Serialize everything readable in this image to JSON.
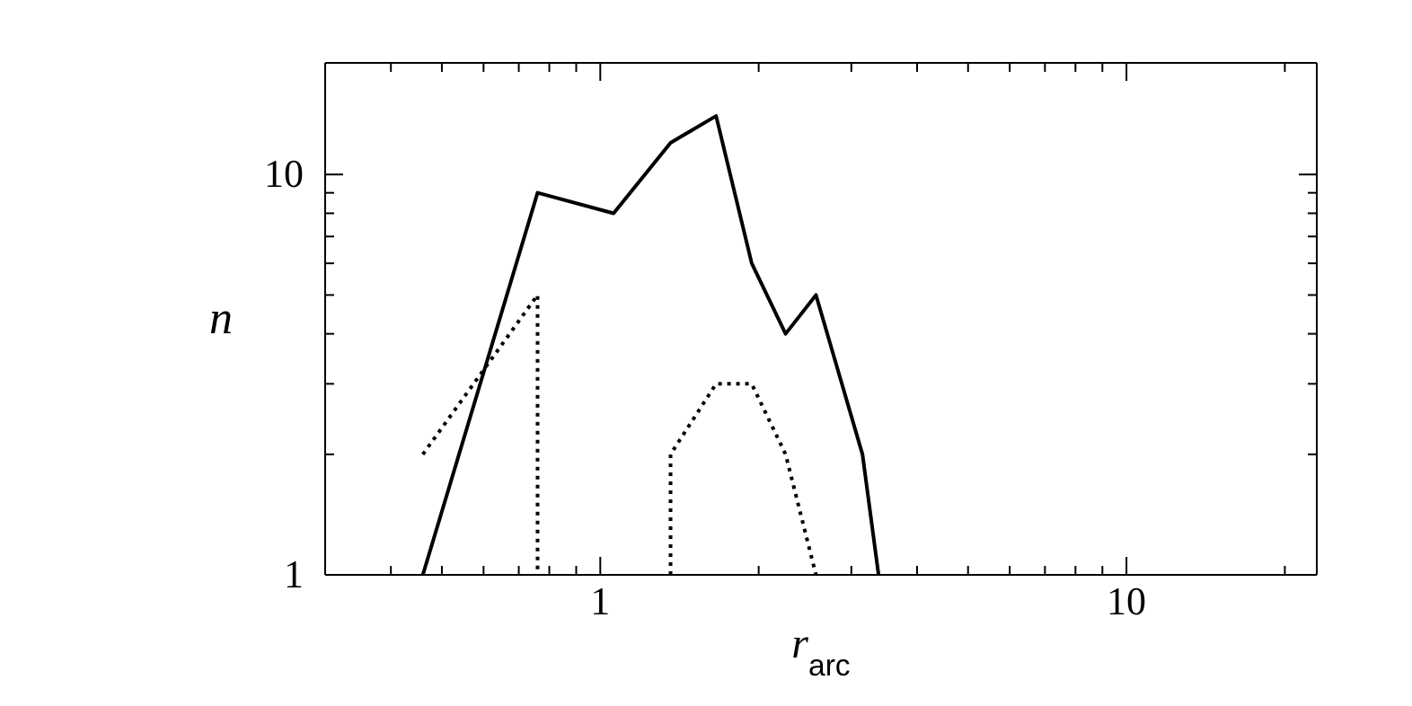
{
  "chart_data": {
    "type": "line",
    "xlabel": "r$_{arc}$",
    "ylabel": "n",
    "log": "xy",
    "marker": "none",
    "xlim": [
      0.3,
      23
    ],
    "ylim": [
      1,
      19
    ],
    "xticks": [
      {
        "value": 0.4,
        "label": null
      },
      {
        "value": 0.5,
        "label": null
      },
      {
        "value": 0.6,
        "label": null
      },
      {
        "value": 0.7,
        "label": null
      },
      {
        "value": 0.8,
        "label": null
      },
      {
        "value": 0.9,
        "label": null
      },
      1,
      {
        "value": 2,
        "label": null
      },
      {
        "value": 3,
        "label": null
      },
      {
        "value": 4,
        "label": null
      },
      {
        "value": 5,
        "label": null
      },
      {
        "value": 6,
        "label": null
      },
      {
        "value": 7,
        "label": null
      },
      {
        "value": 8,
        "label": null
      },
      {
        "value": 9,
        "label": null
      },
      10,
      {
        "value": 20,
        "label": null
      }
    ],
    "yticks": [
      1,
      {
        "value": 2,
        "label": null
      },
      {
        "value": 3,
        "label": null
      },
      {
        "value": 4,
        "label": null
      },
      {
        "value": 5,
        "label": null
      },
      {
        "value": 6,
        "label": null
      },
      {
        "value": 7,
        "label": null
      },
      {
        "value": 8,
        "label": null
      },
      {
        "value": 9,
        "label": null
      },
      10
    ],
    "series": [
      {
        "color": "#000000",
        "line_style": "solid",
        "x": [
          0.46,
          0.76,
          1.06,
          1.36,
          1.66,
          1.94,
          2.25,
          2.57,
          3.15,
          3.38
        ],
        "values": [
          1,
          9,
          8,
          12,
          14,
          6,
          4,
          5,
          2,
          1
        ]
      },
      {
        "color": "#000000",
        "line_style": "dotted",
        "x": [
          0.46,
          0.76,
          0.76
        ],
        "values": [
          2,
          5,
          1
        ]
      },
      {
        "color": "#000000",
        "line_style": "dotted",
        "x": [
          1.36,
          1.36,
          1.66,
          1.94,
          2.25,
          2.57
        ],
        "values": [
          1,
          2,
          3,
          3,
          2,
          1
        ]
      }
    ]
  }
}
